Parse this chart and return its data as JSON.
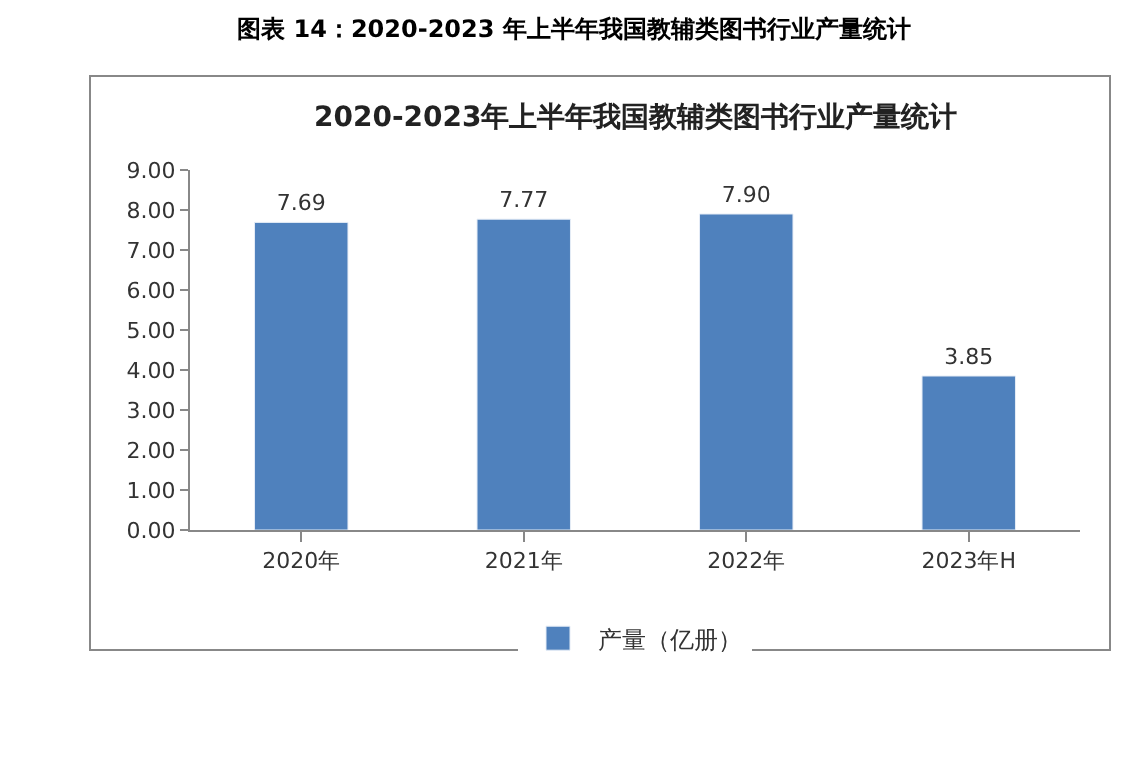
{
  "chart_data": {
    "type": "bar",
    "title": "图表 14：2020-2023 年上半年我国教辅类图书行业产量统计",
    "subtitle": "2020-2023年上半年我国教辅类图书行业产量统计",
    "categories": [
      "2020年",
      "2021年",
      "2022年",
      "2023年H"
    ],
    "series": [
      {
        "name": "产量（亿册）",
        "color": "#4f81bd",
        "values": [
          7.69,
          7.77,
          7.9,
          3.85
        ]
      }
    ],
    "ylim": [
      0,
      9
    ],
    "yticks": [
      {
        "value": 0,
        "label": "0.00"
      },
      {
        "value": 1,
        "label": "1.00"
      },
      {
        "value": 2,
        "label": "2.00"
      },
      {
        "value": 3,
        "label": "3.00"
      },
      {
        "value": 4,
        "label": "4.00"
      },
      {
        "value": 5,
        "label": "5.00"
      },
      {
        "value": 6,
        "label": "6.00"
      },
      {
        "value": 7,
        "label": "7.00"
      },
      {
        "value": 8,
        "label": "8.00"
      },
      {
        "value": 9,
        "label": "9.00"
      }
    ],
    "value_labels": [
      "7.69",
      "7.77",
      "7.90",
      "3.85"
    ],
    "legend": "bottom"
  }
}
